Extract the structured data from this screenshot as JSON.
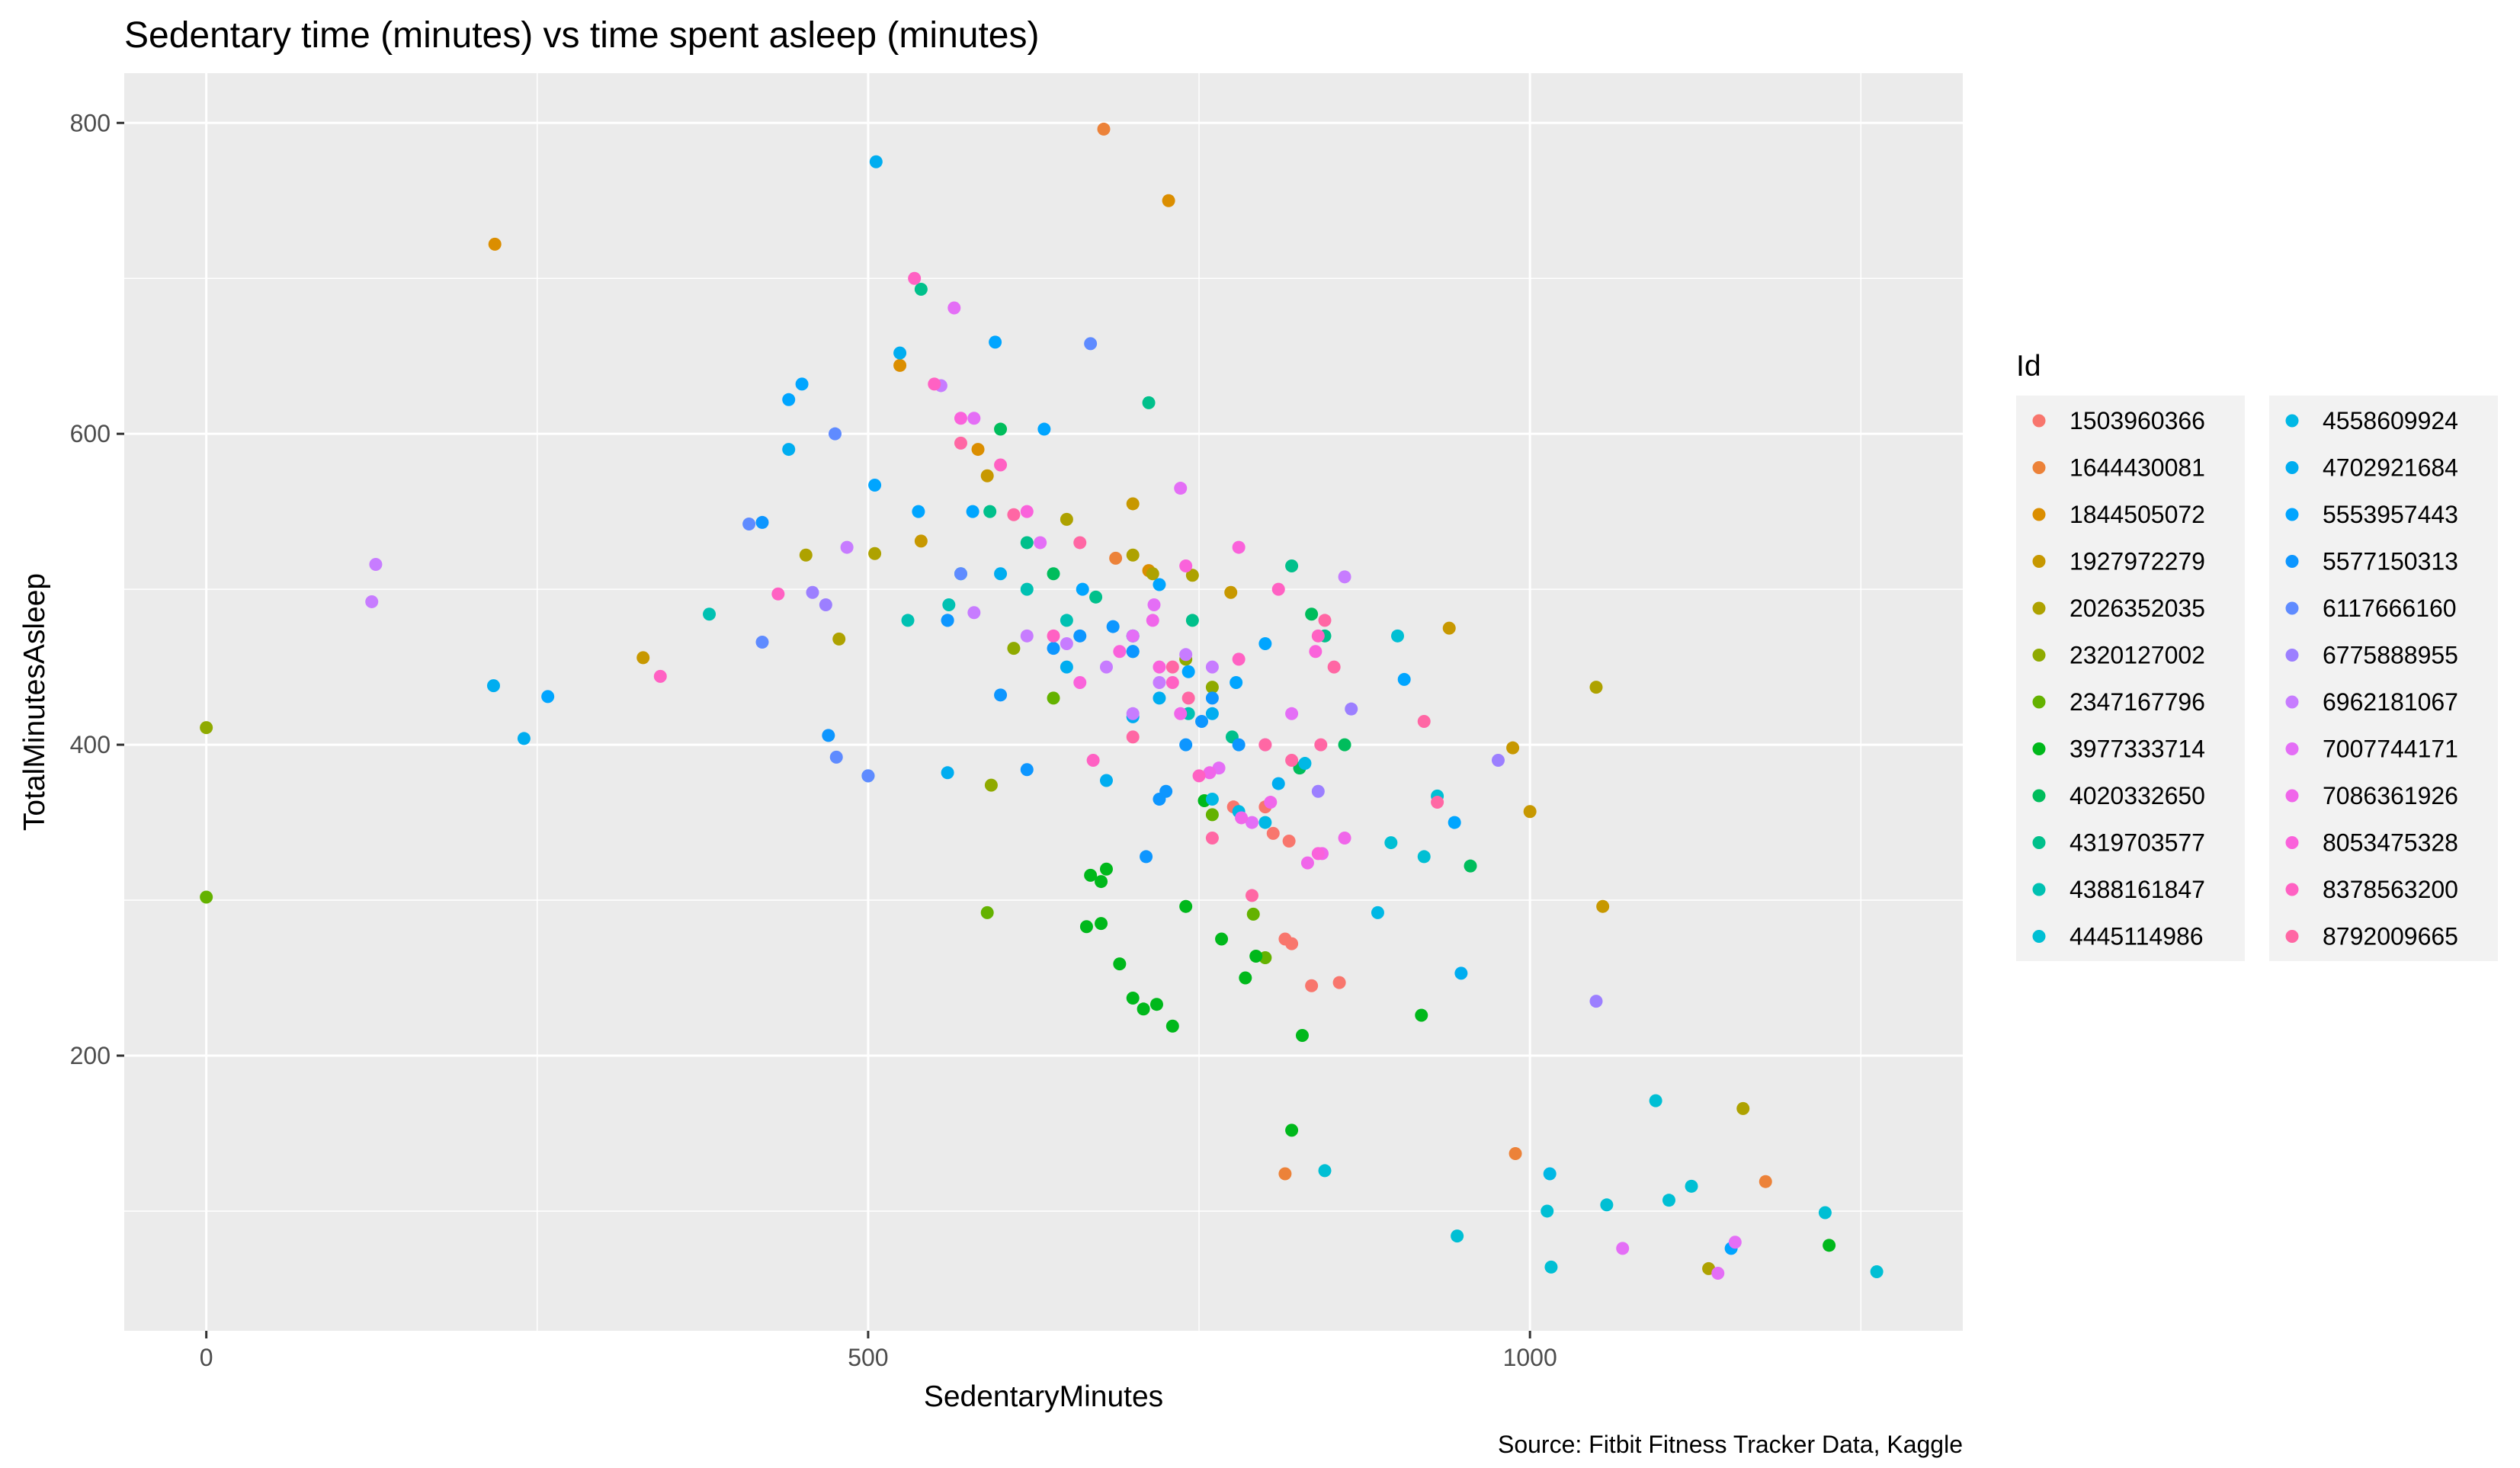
{
  "chart_data": {
    "type": "scatter",
    "title": "Sedentary time (minutes) vs time spent asleep (minutes)",
    "xlabel": "SedentaryMinutes",
    "ylabel": "TotalMinutesAsleep",
    "caption": "Source: Fitbit Fitness Tracker Data, Kaggle",
    "xlim": [
      -62,
      1327
    ],
    "ylim": [
      23,
      832
    ],
    "x_ticks": [
      0,
      500,
      1000
    ],
    "y_ticks": [
      200,
      400,
      600,
      800
    ],
    "x_tick_labels": [
      "0",
      "500",
      "1000"
    ],
    "y_tick_labels": [
      "200",
      "400",
      "600",
      "800"
    ],
    "grid": true,
    "legend": {
      "title": "Id",
      "placement": "right",
      "columns": 2
    },
    "series": [
      {
        "name": "1503960366",
        "color": "#F8766D",
        "points": [
          [
            815,
            275
          ],
          [
            835,
            245
          ],
          [
            856,
            247
          ],
          [
            820,
            272
          ],
          [
            800,
            360
          ],
          [
            776,
            360
          ],
          [
            806,
            343
          ],
          [
            818,
            338
          ]
        ]
      },
      {
        "name": "1644430081",
        "color": "#EC8239",
        "points": [
          [
            678,
            796
          ],
          [
            815,
            124
          ],
          [
            989,
            137
          ],
          [
            1178,
            119
          ],
          [
            687,
            520
          ]
        ]
      },
      {
        "name": "1844505072",
        "color": "#DB8E00",
        "points": [
          [
            218,
            722
          ],
          [
            727,
            750
          ],
          [
            524,
            644
          ],
          [
            583,
            590
          ],
          [
            712,
            512
          ]
        ]
      },
      {
        "name": "1927972279",
        "color": "#C79800",
        "points": [
          [
            330,
            456
          ],
          [
            590,
            573
          ],
          [
            540,
            531
          ],
          [
            700,
            555
          ],
          [
            774,
            498
          ],
          [
            939,
            475
          ],
          [
            987,
            398
          ],
          [
            1000,
            357
          ],
          [
            1055,
            296
          ]
        ]
      },
      {
        "name": "2026352035",
        "color": "#AEA200",
        "points": [
          [
            1050,
            437
          ],
          [
            1135,
            63
          ],
          [
            1161,
            166
          ],
          [
            453,
            522
          ],
          [
            478,
            468
          ],
          [
            505,
            523
          ],
          [
            650,
            545
          ],
          [
            700,
            522
          ],
          [
            715,
            510
          ],
          [
            745,
            509
          ]
        ]
      },
      {
        "name": "2320127002",
        "color": "#8FAA00",
        "points": [
          [
            0,
            411
          ],
          [
            593,
            374
          ],
          [
            610,
            462
          ],
          [
            740,
            455
          ],
          [
            760,
            437
          ]
        ]
      },
      {
        "name": "2347167796",
        "color": "#64B200",
        "points": [
          [
            0,
            302
          ],
          [
            590,
            292
          ],
          [
            640,
            430
          ],
          [
            760,
            355
          ],
          [
            800,
            263
          ],
          [
            791,
            291
          ]
        ]
      },
      {
        "name": "3977333714",
        "color": "#00B81B",
        "points": [
          [
            820,
            152
          ],
          [
            828,
            213
          ],
          [
            918,
            226
          ],
          [
            1226,
            78
          ],
          [
            665,
            283
          ],
          [
            676,
            285
          ],
          [
            690,
            259
          ],
          [
            700,
            237
          ],
          [
            708,
            230
          ],
          [
            718,
            233
          ],
          [
            730,
            219
          ],
          [
            740,
            296
          ],
          [
            754,
            364
          ],
          [
            767,
            275
          ],
          [
            785,
            250
          ],
          [
            793,
            264
          ],
          [
            680,
            320
          ],
          [
            676,
            312
          ],
          [
            668,
            316
          ]
        ]
      },
      {
        "name": "4020332650",
        "color": "#00BD5C",
        "points": [
          [
            955,
            322
          ],
          [
            826,
            385
          ],
          [
            835,
            484
          ],
          [
            860,
            400
          ],
          [
            640,
            510
          ],
          [
            600,
            603
          ]
        ]
      },
      {
        "name": "4319703577",
        "color": "#00C08B",
        "points": [
          [
            540,
            693
          ],
          [
            712,
            620
          ],
          [
            592,
            550
          ],
          [
            620,
            530
          ],
          [
            672,
            495
          ],
          [
            700,
            470
          ],
          [
            745,
            480
          ],
          [
            775,
            405
          ],
          [
            820,
            515
          ],
          [
            845,
            470
          ]
        ]
      },
      {
        "name": "4388161847",
        "color": "#00C1B2",
        "points": [
          [
            380,
            484
          ],
          [
            530,
            480
          ],
          [
            561,
            490
          ],
          [
            570,
            510
          ],
          [
            620,
            500
          ],
          [
            650,
            480
          ],
          [
            700,
            460
          ],
          [
            742,
            420
          ]
        ]
      },
      {
        "name": "4445114986",
        "color": "#00BFD4",
        "points": [
          [
            845,
            126
          ],
          [
            945,
            84
          ],
          [
            1013,
            100
          ],
          [
            1016,
            64
          ],
          [
            1058,
            104
          ],
          [
            1095,
            171
          ],
          [
            1105,
            107
          ],
          [
            1122,
            116
          ],
          [
            1223,
            99
          ],
          [
            1262,
            61
          ],
          [
            895,
            337
          ],
          [
            900,
            470
          ],
          [
            920,
            328
          ],
          [
            930,
            367
          ]
        ]
      },
      {
        "name": "4558609924",
        "color": "#00B8E5",
        "points": [
          [
            1015,
            124
          ],
          [
            780,
            357
          ],
          [
            800,
            350
          ],
          [
            830,
            388
          ],
          [
            885,
            292
          ],
          [
            760,
            365
          ]
        ]
      },
      {
        "name": "4702921684",
        "color": "#00ADF0",
        "points": [
          [
            217,
            438
          ],
          [
            240,
            404
          ],
          [
            506,
            775
          ],
          [
            524,
            652
          ],
          [
            440,
            590
          ],
          [
            560,
            382
          ],
          [
            600,
            510
          ],
          [
            650,
            450
          ],
          [
            680,
            377
          ],
          [
            700,
            418
          ],
          [
            720,
            430
          ],
          [
            760,
            420
          ],
          [
            810,
            375
          ],
          [
            948,
            253
          ]
        ]
      },
      {
        "name": "5553957443",
        "color": "#00A5FF",
        "points": [
          [
            258,
            431
          ],
          [
            440,
            622
          ],
          [
            450,
            632
          ],
          [
            505,
            567
          ],
          [
            538,
            550
          ],
          [
            560,
            480
          ],
          [
            579,
            550
          ],
          [
            596,
            659
          ],
          [
            633,
            603
          ],
          [
            662,
            500
          ],
          [
            700,
            470
          ],
          [
            720,
            503
          ],
          [
            742,
            447
          ],
          [
            778,
            440
          ],
          [
            800,
            465
          ],
          [
            905,
            442
          ],
          [
            943,
            350
          ],
          [
            1152,
            76
          ]
        ]
      },
      {
        "name": "5577150313",
        "color": "#0D96FF",
        "points": [
          [
            420,
            543
          ],
          [
            470,
            406
          ],
          [
            500,
            380
          ],
          [
            560,
            480
          ],
          [
            600,
            432
          ],
          [
            620,
            384
          ],
          [
            640,
            462
          ],
          [
            660,
            470
          ],
          [
            685,
            476
          ],
          [
            700,
            460
          ],
          [
            710,
            328
          ],
          [
            720,
            365
          ],
          [
            725,
            370
          ],
          [
            740,
            400
          ],
          [
            752,
            415
          ],
          [
            760,
            430
          ],
          [
            780,
            400
          ]
        ]
      },
      {
        "name": "6117666160",
        "color": "#5F8BFF",
        "points": [
          [
            410,
            542
          ],
          [
            420,
            466
          ],
          [
            475,
            600
          ],
          [
            476,
            392
          ],
          [
            500,
            380
          ],
          [
            570,
            510
          ],
          [
            668,
            658
          ]
        ]
      },
      {
        "name": "6775888955",
        "color": "#9C7FFF",
        "points": [
          [
            458,
            498
          ],
          [
            468,
            490
          ],
          [
            976,
            390
          ],
          [
            1050,
            235
          ],
          [
            840,
            370
          ],
          [
            865,
            423
          ]
        ]
      },
      {
        "name": "6962181067",
        "color": "#C77CFF",
        "points": [
          [
            125,
            492
          ],
          [
            128,
            516
          ],
          [
            484,
            527
          ],
          [
            555,
            631
          ],
          [
            580,
            485
          ],
          [
            620,
            470
          ],
          [
            650,
            465
          ],
          [
            680,
            450
          ],
          [
            700,
            420
          ],
          [
            720,
            440
          ],
          [
            740,
            458
          ],
          [
            760,
            450
          ],
          [
            800,
            400
          ],
          [
            860,
            508
          ]
        ]
      },
      {
        "name": "7007744171",
        "color": "#E46EF6",
        "points": [
          [
            565,
            681
          ],
          [
            580,
            610
          ],
          [
            630,
            530
          ],
          [
            700,
            470
          ],
          [
            716,
            490
          ],
          [
            736,
            565
          ],
          [
            765,
            385
          ],
          [
            790,
            350
          ],
          [
            820,
            420
          ],
          [
            1070,
            76
          ],
          [
            1142,
            60
          ],
          [
            1155,
            80
          ]
        ]
      },
      {
        "name": "7086361926",
        "color": "#F066EA",
        "points": [
          [
            715,
            480
          ],
          [
            736,
            420
          ],
          [
            758,
            382
          ],
          [
            782,
            353
          ],
          [
            804,
            363
          ],
          [
            832,
            324
          ],
          [
            843,
            330
          ],
          [
            860,
            340
          ]
        ]
      },
      {
        "name": "8053475328",
        "color": "#FA62DB",
        "points": [
          [
            570,
            610
          ],
          [
            620,
            550
          ],
          [
            660,
            440
          ],
          [
            690,
            460
          ],
          [
            720,
            450
          ],
          [
            740,
            515
          ],
          [
            780,
            527
          ],
          [
            840,
            330
          ],
          [
            838,
            460
          ]
        ]
      },
      {
        "name": "8378563200",
        "color": "#FF61C3",
        "points": [
          [
            432,
            497
          ],
          [
            343,
            444
          ],
          [
            535,
            700
          ],
          [
            550,
            632
          ],
          [
            600,
            580
          ],
          [
            640,
            470
          ],
          [
            670,
            390
          ],
          [
            730,
            440
          ],
          [
            750,
            380
          ],
          [
            780,
            455
          ],
          [
            810,
            500
          ],
          [
            840,
            470
          ]
        ]
      },
      {
        "name": "8792009665",
        "color": "#FF67A4",
        "points": [
          [
            570,
            594
          ],
          [
            610,
            548
          ],
          [
            660,
            530
          ],
          [
            700,
            405
          ],
          [
            730,
            450
          ],
          [
            742,
            430
          ],
          [
            760,
            340
          ],
          [
            790,
            303
          ],
          [
            800,
            400
          ],
          [
            820,
            390
          ],
          [
            842,
            400
          ],
          [
            852,
            450
          ],
          [
            930,
            363
          ],
          [
            920,
            415
          ],
          [
            845,
            480
          ]
        ]
      }
    ]
  }
}
